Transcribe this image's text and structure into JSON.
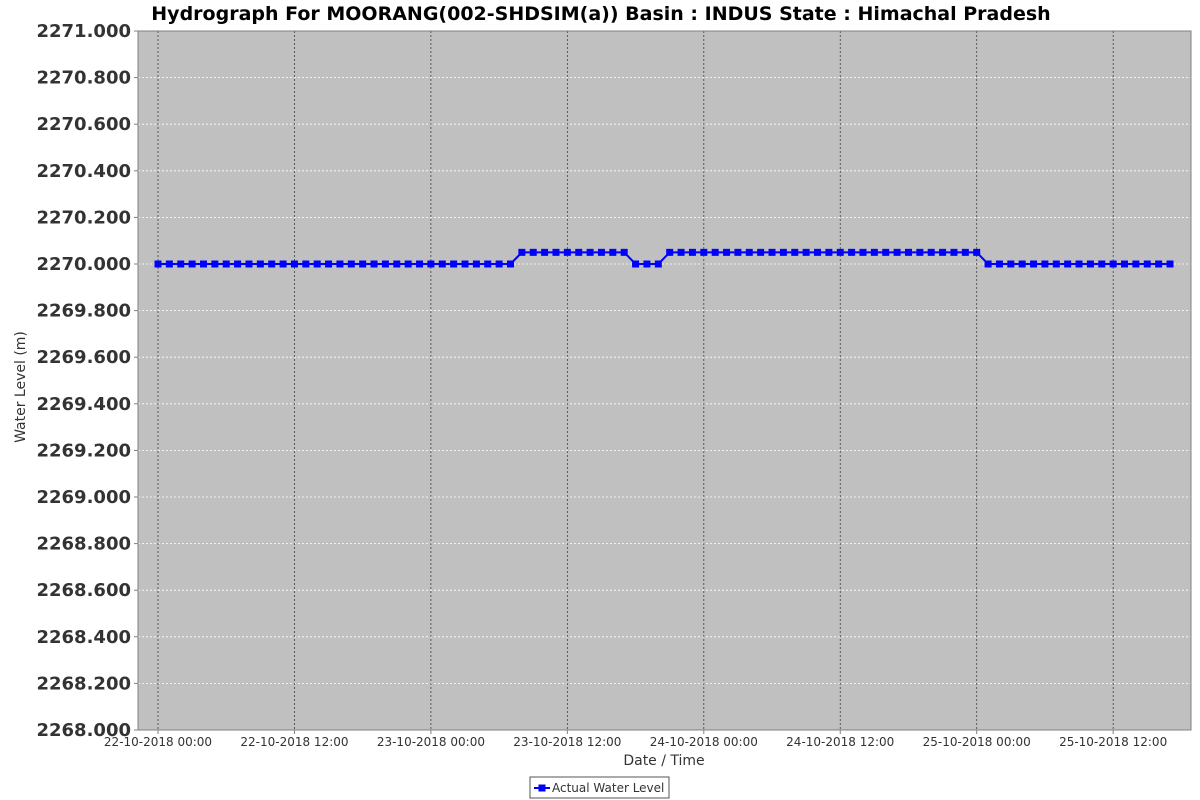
{
  "chart_data": {
    "type": "line",
    "title": "Hydrograph For MOORANG(002-SHDSIM(a)) Basin : INDUS State : Himachal Pradesh",
    "xlabel": "Date / Time",
    "ylabel": "Water Level (m)",
    "ylim": [
      2268.0,
      2271.0
    ],
    "xlim": [
      "2018-10-22T00:00",
      "2018-10-25T17:00"
    ],
    "y_ticks": [
      "2268.000",
      "2268.200",
      "2268.400",
      "2268.600",
      "2268.800",
      "2269.000",
      "2269.200",
      "2269.400",
      "2269.600",
      "2269.800",
      "2270.000",
      "2270.200",
      "2270.400",
      "2270.600",
      "2270.800",
      "2271.000"
    ],
    "x_ticks": [
      {
        "t": "2018-10-22T00:00",
        "label": "22-10-2018 00:00"
      },
      {
        "t": "2018-10-22T12:00",
        "label": "22-10-2018 12:00"
      },
      {
        "t": "2018-10-23T00:00",
        "label": "23-10-2018 00:00"
      },
      {
        "t": "2018-10-23T12:00",
        "label": "23-10-2018 12:00"
      },
      {
        "t": "2018-10-24T00:00",
        "label": "24-10-2018 00:00"
      },
      {
        "t": "2018-10-24T12:00",
        "label": "24-10-2018 12:00"
      },
      {
        "t": "2018-10-25T00:00",
        "label": "25-10-2018 00:00"
      },
      {
        "t": "2018-10-25T12:00",
        "label": "25-10-2018 12:00"
      }
    ],
    "grid": true,
    "legend_position": "bottom-center",
    "colors": {
      "plot_background": "#c0c0c0",
      "series": "#0000ff"
    },
    "series": [
      {
        "name": "Actual Water Level",
        "marker": "square",
        "points": [
          {
            "x": "2018-10-22T00:00",
            "y": 2270.0
          },
          {
            "x": "2018-10-22T01:00",
            "y": 2270.0
          },
          {
            "x": "2018-10-22T02:00",
            "y": 2270.0
          },
          {
            "x": "2018-10-22T03:00",
            "y": 2270.0
          },
          {
            "x": "2018-10-22T04:00",
            "y": 2270.0
          },
          {
            "x": "2018-10-22T05:00",
            "y": 2270.0
          },
          {
            "x": "2018-10-22T06:00",
            "y": 2270.0
          },
          {
            "x": "2018-10-22T07:00",
            "y": 2270.0
          },
          {
            "x": "2018-10-22T08:00",
            "y": 2270.0
          },
          {
            "x": "2018-10-22T09:00",
            "y": 2270.0
          },
          {
            "x": "2018-10-22T10:00",
            "y": 2270.0
          },
          {
            "x": "2018-10-22T11:00",
            "y": 2270.0
          },
          {
            "x": "2018-10-22T12:00",
            "y": 2270.0
          },
          {
            "x": "2018-10-22T13:00",
            "y": 2270.0
          },
          {
            "x": "2018-10-22T14:00",
            "y": 2270.0
          },
          {
            "x": "2018-10-22T15:00",
            "y": 2270.0
          },
          {
            "x": "2018-10-22T16:00",
            "y": 2270.0
          },
          {
            "x": "2018-10-22T17:00",
            "y": 2270.0
          },
          {
            "x": "2018-10-22T18:00",
            "y": 2270.0
          },
          {
            "x": "2018-10-22T19:00",
            "y": 2270.0
          },
          {
            "x": "2018-10-22T20:00",
            "y": 2270.0
          },
          {
            "x": "2018-10-22T21:00",
            "y": 2270.0
          },
          {
            "x": "2018-10-22T22:00",
            "y": 2270.0
          },
          {
            "x": "2018-10-22T23:00",
            "y": 2270.0
          },
          {
            "x": "2018-10-23T00:00",
            "y": 2270.0
          },
          {
            "x": "2018-10-23T01:00",
            "y": 2270.0
          },
          {
            "x": "2018-10-23T02:00",
            "y": 2270.0
          },
          {
            "x": "2018-10-23T03:00",
            "y": 2270.0
          },
          {
            "x": "2018-10-23T04:00",
            "y": 2270.0
          },
          {
            "x": "2018-10-23T05:00",
            "y": 2270.0
          },
          {
            "x": "2018-10-23T06:00",
            "y": 2270.0
          },
          {
            "x": "2018-10-23T07:00",
            "y": 2270.0
          },
          {
            "x": "2018-10-23T08:00",
            "y": 2270.05
          },
          {
            "x": "2018-10-23T09:00",
            "y": 2270.05
          },
          {
            "x": "2018-10-23T10:00",
            "y": 2270.05
          },
          {
            "x": "2018-10-23T11:00",
            "y": 2270.05
          },
          {
            "x": "2018-10-23T12:00",
            "y": 2270.05
          },
          {
            "x": "2018-10-23T13:00",
            "y": 2270.05
          },
          {
            "x": "2018-10-23T14:00",
            "y": 2270.05
          },
          {
            "x": "2018-10-23T15:00",
            "y": 2270.05
          },
          {
            "x": "2018-10-23T16:00",
            "y": 2270.05
          },
          {
            "x": "2018-10-23T17:00",
            "y": 2270.05
          },
          {
            "x": "2018-10-23T18:00",
            "y": 2270.0
          },
          {
            "x": "2018-10-23T19:00",
            "y": 2270.0
          },
          {
            "x": "2018-10-23T20:00",
            "y": 2270.0
          },
          {
            "x": "2018-10-23T21:00",
            "y": 2270.05
          },
          {
            "x": "2018-10-23T22:00",
            "y": 2270.05
          },
          {
            "x": "2018-10-23T23:00",
            "y": 2270.05
          },
          {
            "x": "2018-10-24T00:00",
            "y": 2270.05
          },
          {
            "x": "2018-10-24T01:00",
            "y": 2270.05
          },
          {
            "x": "2018-10-24T02:00",
            "y": 2270.05
          },
          {
            "x": "2018-10-24T03:00",
            "y": 2270.05
          },
          {
            "x": "2018-10-24T04:00",
            "y": 2270.05
          },
          {
            "x": "2018-10-24T05:00",
            "y": 2270.05
          },
          {
            "x": "2018-10-24T06:00",
            "y": 2270.05
          },
          {
            "x": "2018-10-24T07:00",
            "y": 2270.05
          },
          {
            "x": "2018-10-24T08:00",
            "y": 2270.05
          },
          {
            "x": "2018-10-24T09:00",
            "y": 2270.05
          },
          {
            "x": "2018-10-24T10:00",
            "y": 2270.05
          },
          {
            "x": "2018-10-24T11:00",
            "y": 2270.05
          },
          {
            "x": "2018-10-24T12:00",
            "y": 2270.05
          },
          {
            "x": "2018-10-24T13:00",
            "y": 2270.05
          },
          {
            "x": "2018-10-24T14:00",
            "y": 2270.05
          },
          {
            "x": "2018-10-24T15:00",
            "y": 2270.05
          },
          {
            "x": "2018-10-24T16:00",
            "y": 2270.05
          },
          {
            "x": "2018-10-24T17:00",
            "y": 2270.05
          },
          {
            "x": "2018-10-24T18:00",
            "y": 2270.05
          },
          {
            "x": "2018-10-24T19:00",
            "y": 2270.05
          },
          {
            "x": "2018-10-24T20:00",
            "y": 2270.05
          },
          {
            "x": "2018-10-24T21:00",
            "y": 2270.05
          },
          {
            "x": "2018-10-24T22:00",
            "y": 2270.05
          },
          {
            "x": "2018-10-24T23:00",
            "y": 2270.05
          },
          {
            "x": "2018-10-25T00:00",
            "y": 2270.05
          },
          {
            "x": "2018-10-25T01:00",
            "y": 2270.0
          },
          {
            "x": "2018-10-25T02:00",
            "y": 2270.0
          },
          {
            "x": "2018-10-25T03:00",
            "y": 2270.0
          },
          {
            "x": "2018-10-25T04:00",
            "y": 2270.0
          },
          {
            "x": "2018-10-25T05:00",
            "y": 2270.0
          },
          {
            "x": "2018-10-25T06:00",
            "y": 2270.0
          },
          {
            "x": "2018-10-25T07:00",
            "y": 2270.0
          },
          {
            "x": "2018-10-25T08:00",
            "y": 2270.0
          },
          {
            "x": "2018-10-25T09:00",
            "y": 2270.0
          },
          {
            "x": "2018-10-25T10:00",
            "y": 2270.0
          },
          {
            "x": "2018-10-25T11:00",
            "y": 2270.0
          },
          {
            "x": "2018-10-25T12:00",
            "y": 2270.0
          },
          {
            "x": "2018-10-25T13:00",
            "y": 2270.0
          },
          {
            "x": "2018-10-25T14:00",
            "y": 2270.0
          },
          {
            "x": "2018-10-25T15:00",
            "y": 2270.0
          },
          {
            "x": "2018-10-25T16:00",
            "y": 2270.0
          },
          {
            "x": "2018-10-25T17:00",
            "y": 2270.0
          }
        ]
      }
    ]
  }
}
